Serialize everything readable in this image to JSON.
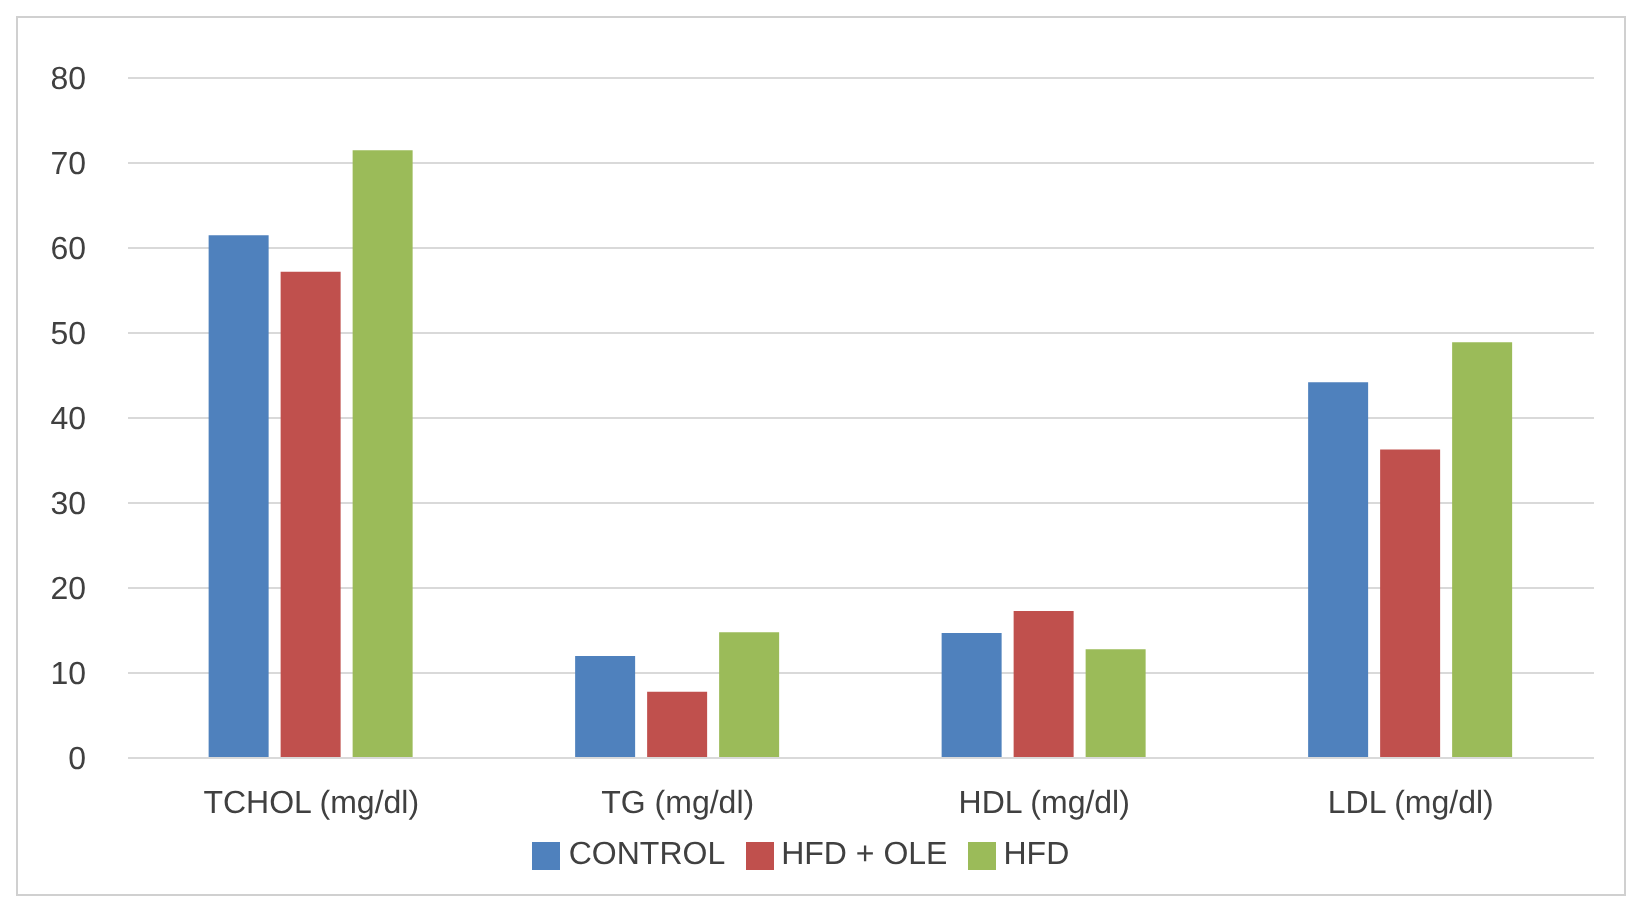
{
  "chart_data": {
    "type": "bar",
    "categories": [
      "TCHOL (mg/dl)",
      "TG (mg/dl)",
      "HDL (mg/dl)",
      "LDL (mg/dl)"
    ],
    "series": [
      {
        "name": "CONTROL",
        "color": "#4f81bd",
        "values": [
          61.5,
          12,
          14.7,
          44.2
        ]
      },
      {
        "name": "HFD + OLE",
        "color": "#c0504d",
        "values": [
          57.2,
          7.8,
          17.3,
          36.3
        ]
      },
      {
        "name": "HFD",
        "color": "#9bbb59",
        "values": [
          71.5,
          14.8,
          12.8,
          48.9
        ]
      }
    ],
    "ylim": [
      0,
      80
    ],
    "yticks": [
      0,
      10,
      20,
      30,
      40,
      50,
      60,
      70,
      80
    ],
    "grid": "y",
    "legend": "bottom"
  }
}
